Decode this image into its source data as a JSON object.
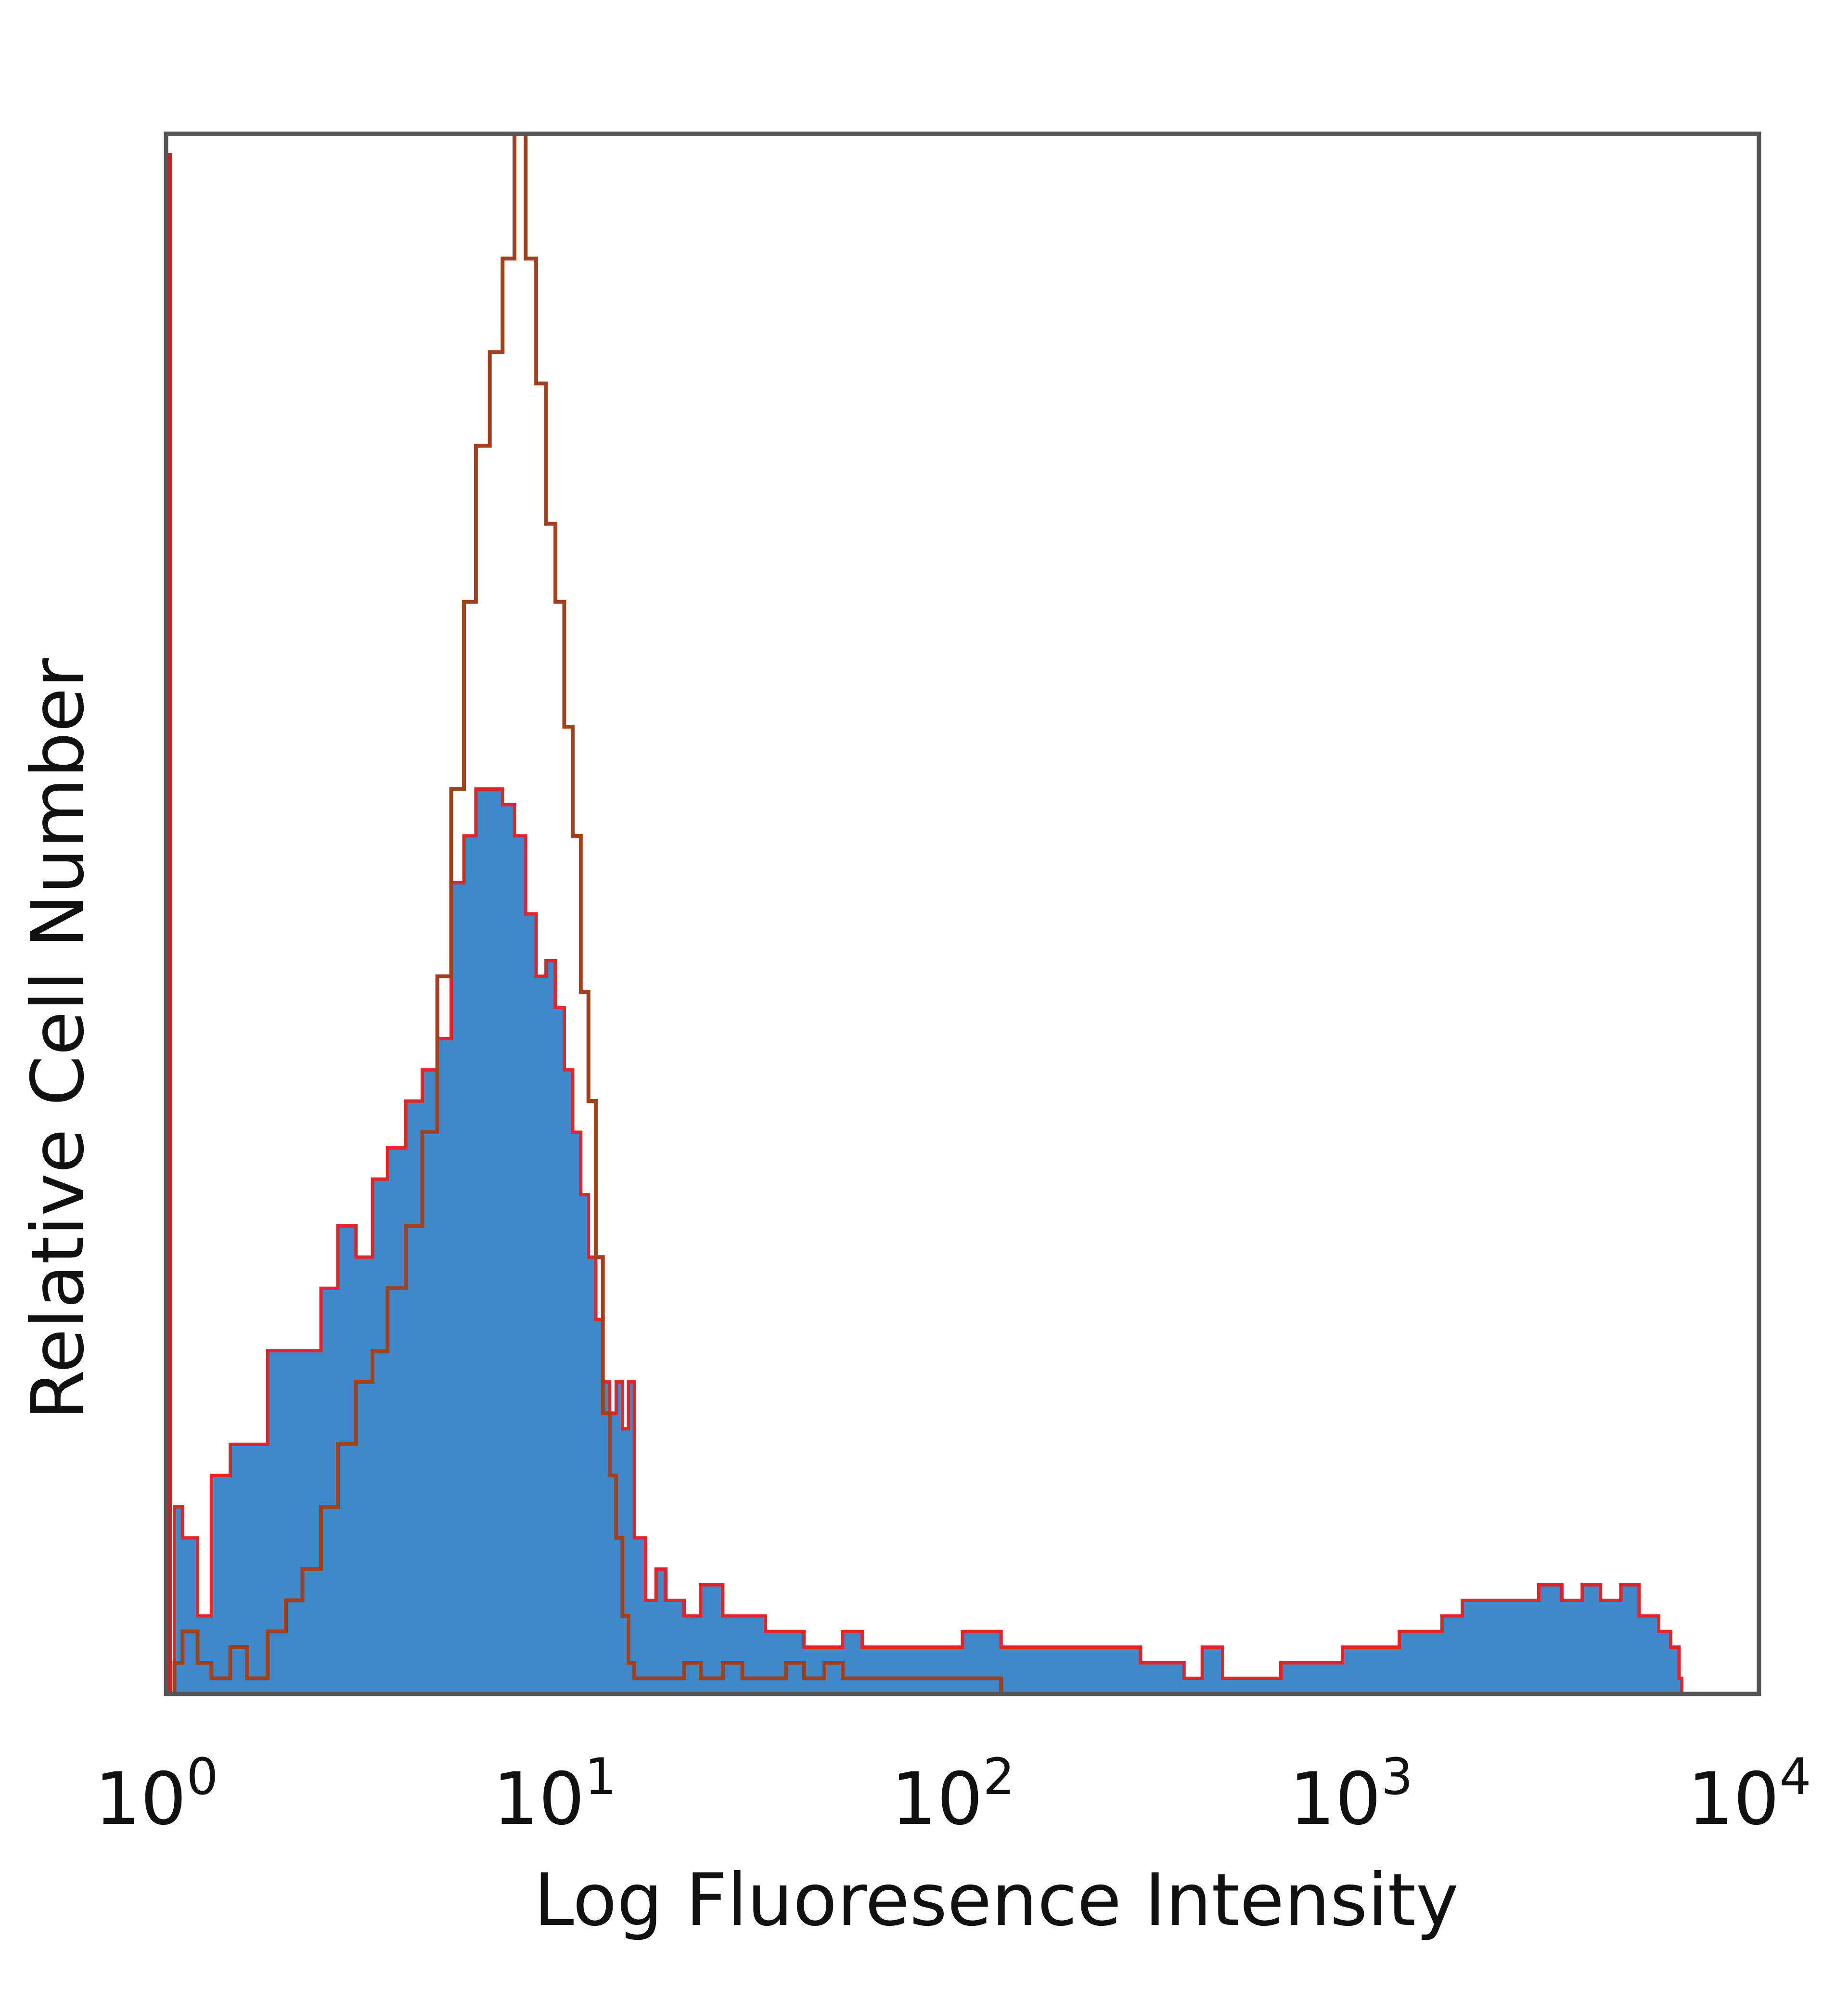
{
  "chart_data": {
    "type": "area",
    "title": "",
    "xlabel": "Log Fluoresence Intensity",
    "ylabel": "Relative Cell Number",
    "x_scale": "log",
    "xlim": [
      1,
      10000
    ],
    "ylim": [
      0,
      100
    ],
    "grid": false,
    "legend": "none",
    "x_ticks": [
      {
        "base": "10",
        "exp": "0",
        "value": 1
      },
      {
        "base": "10",
        "exp": "1",
        "value": 10
      },
      {
        "base": "10",
        "exp": "2",
        "value": 100
      },
      {
        "base": "10",
        "exp": "3",
        "value": 1000
      },
      {
        "base": "10",
        "exp": "4",
        "value": 10000
      }
    ],
    "series": [
      {
        "style": "filled",
        "fill_color": "#3f88c9",
        "edge_color": "#e0252b",
        "x": [
          1.0,
          1.05,
          1.1,
          1.2,
          1.3,
          1.45,
          1.6,
          1.8,
          2.0,
          2.2,
          2.45,
          2.7,
          3.0,
          3.3,
          3.6,
          4.0,
          4.4,
          4.8,
          5.2,
          5.6,
          6.0,
          6.5,
          7.0,
          7.5,
          8.0,
          8.5,
          9.0,
          9.5,
          10.0,
          10.5,
          11.0,
          11.5,
          12.0,
          12.5,
          13.0,
          13.5,
          14.0,
          14.5,
          15.0,
          16.0,
          17.0,
          18.0,
          20.0,
          22.0,
          25.0,
          28.0,
          32.0,
          36.0,
          40.0,
          45.0,
          50.0,
          56.0,
          63.0,
          70.0,
          80.0,
          90.0,
          100,
          112,
          125,
          140,
          160,
          180,
          200,
          225,
          250,
          280,
          320,
          360,
          400,
          450,
          500,
          560,
          630,
          700,
          800,
          900,
          1000,
          1120,
          1250,
          1400,
          1600,
          1800,
          2000,
          2250,
          2500,
          2800,
          3200,
          3600,
          4000,
          4500,
          5000,
          5600,
          6000,
          6300,
          6400
        ],
        "y": [
          0,
          12,
          10,
          5,
          14,
          16,
          16,
          22,
          22,
          22,
          26,
          30,
          28,
          33,
          35,
          38,
          40,
          42,
          52,
          55,
          58,
          58,
          57,
          55,
          50,
          46,
          47,
          44,
          40,
          36,
          32,
          28,
          24,
          20,
          18,
          20,
          17,
          20,
          10,
          6,
          8,
          6,
          5,
          7,
          5,
          5,
          4,
          4,
          3,
          3,
          4,
          3,
          3,
          3,
          3,
          3,
          4,
          4,
          3,
          3,
          3,
          3,
          3,
          3,
          3,
          2,
          2,
          1,
          3,
          1,
          1,
          1,
          2,
          2,
          2,
          3,
          3,
          3,
          4,
          4,
          5,
          6,
          6,
          6,
          6,
          7,
          6,
          7,
          6,
          7,
          5,
          4,
          3,
          1,
          0
        ]
      },
      {
        "style": "outline",
        "line_color": "#a0401c",
        "x": [
          1.0,
          1.05,
          1.1,
          1.2,
          1.3,
          1.45,
          1.6,
          1.8,
          2.0,
          2.2,
          2.45,
          2.7,
          3.0,
          3.3,
          3.6,
          4.0,
          4.4,
          4.8,
          5.2,
          5.6,
          6.0,
          6.5,
          7.0,
          7.5,
          8.0,
          8.5,
          9.0,
          9.5,
          10.0,
          10.5,
          11.0,
          11.5,
          12.0,
          12.5,
          13.0,
          13.5,
          14.0,
          14.5,
          15.0,
          16.0,
          17.0,
          18.0,
          20.0,
          22.0,
          25.0,
          28.0,
          32.0,
          36.0,
          40.0,
          45.0,
          50.0,
          56.0,
          63.0,
          70.0,
          80.0,
          90.0,
          100,
          112,
          125,
          140,
          160,
          180
        ],
        "y": [
          0,
          2,
          4,
          2,
          1,
          3,
          1,
          4,
          6,
          8,
          12,
          16,
          20,
          22,
          26,
          30,
          36,
          46,
          58,
          70,
          80,
          86,
          92,
          100,
          92,
          84,
          75,
          70,
          62,
          55,
          45,
          38,
          28,
          18,
          14,
          10,
          5,
          2,
          1,
          1,
          1,
          1,
          2,
          1,
          2,
          1,
          1,
          2,
          1,
          2,
          1,
          1,
          1,
          1,
          1,
          1,
          1,
          1,
          0,
          0,
          0,
          0
        ]
      }
    ]
  }
}
